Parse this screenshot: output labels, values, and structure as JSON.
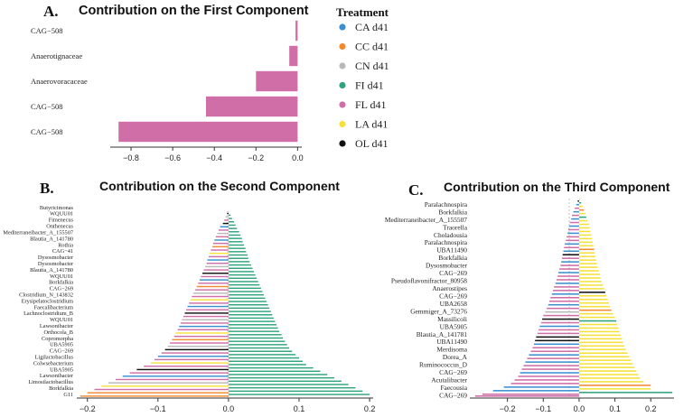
{
  "colors": {
    "CA d41": "#3b8fd0",
    "CC d41": "#f28a30",
    "CN d41": "#b9b9b9",
    "FI d41": "#2fa37b",
    "FL d41": "#cf6ea7",
    "LA d41": "#f5e13a",
    "OL d41": "#111111"
  },
  "legend": {
    "title": "Treatment",
    "items": [
      "CA d41",
      "CC d41",
      "CN d41",
      "FI d41",
      "FL d41",
      "LA d41",
      "OL d41"
    ]
  },
  "chart_data": [
    {
      "panel": "A.",
      "type": "bar",
      "orientation": "horizontal",
      "title": "Contribution on the First Component",
      "xlim": [
        -0.9,
        0.02
      ],
      "xticks": [
        -0.8,
        -0.6,
        -0.4,
        -0.2,
        0.0
      ],
      "xtick_labels": [
        "−0.8",
        "−0.6",
        "−0.4",
        "−0.2",
        "0.0"
      ],
      "categories": [
        "CAG−508",
        "Anaerotignaceae",
        "Anaerovoracaceae",
        "CAG−508",
        "CAG−508"
      ],
      "values": [
        -0.01,
        -0.04,
        -0.2,
        -0.44,
        -0.86
      ],
      "groups": [
        "FL d41",
        "FL d41",
        "FL d41",
        "FL d41",
        "FL d41"
      ]
    },
    {
      "panel": "B.",
      "type": "bar",
      "orientation": "horizontal",
      "title": "Contribution on the Second Component",
      "xlim": [
        -0.215,
        0.205
      ],
      "xticks": [
        -0.2,
        -0.1,
        0.0,
        0.1,
        0.2
      ],
      "xtick_labels": [
        "−0.2",
        "−0.1",
        "0.0",
        "0.1",
        "0.2"
      ],
      "bars_top_to_bottom": [
        {
          "v": 0.001,
          "g": "LA d41"
        },
        {
          "v": -0.002,
          "g": "OL d41"
        },
        {
          "v": 0.003,
          "g": "FI d41"
        },
        {
          "v": -0.004,
          "g": "CN d41"
        },
        {
          "v": 0.005,
          "g": "FI d41"
        },
        {
          "v": -0.006,
          "g": "FL d41"
        },
        {
          "v": 0.008,
          "g": "FI d41"
        },
        {
          "v": -0.008,
          "g": "OL d41"
        },
        {
          "v": 0.01,
          "g": "FI d41"
        },
        {
          "v": -0.012,
          "g": "CA d41"
        },
        {
          "v": 0.012,
          "g": "FI d41"
        },
        {
          "v": -0.014,
          "g": "FL d41"
        },
        {
          "v": 0.015,
          "g": "FI d41"
        },
        {
          "v": -0.016,
          "g": "CN d41"
        },
        {
          "v": 0.017,
          "g": "FI d41"
        },
        {
          "v": -0.018,
          "g": "FL d41"
        },
        {
          "v": 0.019,
          "g": "FI d41"
        },
        {
          "v": -0.02,
          "g": "CA d41"
        },
        {
          "v": 0.02,
          "g": "FI d41"
        },
        {
          "v": -0.022,
          "g": "FL d41"
        },
        {
          "v": 0.022,
          "g": "FI d41"
        },
        {
          "v": -0.023,
          "g": "CC d41"
        },
        {
          "v": 0.024,
          "g": "FI d41"
        },
        {
          "v": -0.025,
          "g": "FL d41"
        },
        {
          "v": 0.025,
          "g": "FI d41"
        },
        {
          "v": -0.027,
          "g": "LA d41"
        },
        {
          "v": 0.027,
          "g": "FI d41"
        },
        {
          "v": -0.028,
          "g": "FL d41"
        },
        {
          "v": 0.028,
          "g": "FI d41"
        },
        {
          "v": -0.03,
          "g": "CA d41"
        },
        {
          "v": 0.03,
          "g": "FI d41"
        },
        {
          "v": -0.031,
          "g": "FL d41"
        },
        {
          "v": 0.032,
          "g": "FI d41"
        },
        {
          "v": -0.033,
          "g": "CN d41"
        },
        {
          "v": 0.034,
          "g": "FI d41"
        },
        {
          "v": -0.035,
          "g": "FL d41"
        },
        {
          "v": 0.036,
          "g": "FI d41"
        },
        {
          "v": -0.037,
          "g": "OL d41"
        },
        {
          "v": 0.038,
          "g": "FI d41"
        },
        {
          "v": -0.039,
          "g": "FL d41"
        },
        {
          "v": 0.04,
          "g": "FI d41"
        },
        {
          "v": -0.041,
          "g": "CA d41"
        },
        {
          "v": 0.042,
          "g": "FI d41"
        },
        {
          "v": -0.043,
          "g": "FL d41"
        },
        {
          "v": 0.044,
          "g": "FI d41"
        },
        {
          "v": -0.045,
          "g": "CC d41"
        },
        {
          "v": 0.046,
          "g": "FI d41"
        },
        {
          "v": -0.047,
          "g": "FL d41"
        },
        {
          "v": 0.048,
          "g": "FI d41"
        },
        {
          "v": -0.05,
          "g": "CN d41"
        },
        {
          "v": 0.05,
          "g": "FI d41"
        },
        {
          "v": -0.052,
          "g": "FL d41"
        },
        {
          "v": 0.052,
          "g": "FI d41"
        },
        {
          "v": -0.054,
          "g": "LA d41"
        },
        {
          "v": 0.054,
          "g": "FI d41"
        },
        {
          "v": -0.056,
          "g": "FL d41"
        },
        {
          "v": 0.056,
          "g": "FI d41"
        },
        {
          "v": -0.058,
          "g": "CA d41"
        },
        {
          "v": 0.058,
          "g": "FI d41"
        },
        {
          "v": -0.06,
          "g": "FL d41"
        },
        {
          "v": 0.06,
          "g": "FI d41"
        },
        {
          "v": -0.062,
          "g": "OL d41"
        },
        {
          "v": 0.062,
          "g": "FI d41"
        },
        {
          "v": -0.064,
          "g": "FL d41"
        },
        {
          "v": 0.064,
          "g": "FI d41"
        },
        {
          "v": -0.066,
          "g": "CN d41"
        },
        {
          "v": 0.066,
          "g": "FI d41"
        },
        {
          "v": -0.068,
          "g": "FL d41"
        },
        {
          "v": 0.068,
          "g": "FI d41"
        },
        {
          "v": -0.07,
          "g": "CA d41"
        },
        {
          "v": 0.07,
          "g": "FI d41"
        },
        {
          "v": -0.072,
          "g": "FL d41"
        },
        {
          "v": 0.072,
          "g": "FI d41"
        },
        {
          "v": -0.075,
          "g": "LA d41"
        },
        {
          "v": 0.075,
          "g": "FI d41"
        },
        {
          "v": -0.077,
          "g": "FL d41"
        },
        {
          "v": 0.077,
          "g": "FI d41"
        },
        {
          "v": -0.08,
          "g": "CC d41"
        },
        {
          "v": 0.08,
          "g": "FI d41"
        },
        {
          "v": -0.083,
          "g": "FL d41"
        },
        {
          "v": 0.083,
          "g": "FI d41"
        },
        {
          "v": -0.086,
          "g": "CN d41"
        },
        {
          "v": 0.086,
          "g": "FI d41"
        },
        {
          "v": -0.09,
          "g": "OL d41"
        },
        {
          "v": 0.09,
          "g": "FI d41"
        },
        {
          "v": -0.095,
          "g": "FL d41"
        },
        {
          "v": 0.095,
          "g": "FI d41"
        },
        {
          "v": -0.1,
          "g": "CA d41"
        },
        {
          "v": 0.1,
          "g": "FI d41"
        },
        {
          "v": -0.105,
          "g": "FL d41"
        },
        {
          "v": 0.105,
          "g": "FI d41"
        },
        {
          "v": -0.11,
          "g": "LA d41"
        },
        {
          "v": 0.11,
          "g": "FI d41"
        },
        {
          "v": -0.12,
          "g": "FL d41"
        },
        {
          "v": 0.12,
          "g": "FI d41"
        },
        {
          "v": -0.13,
          "g": "OL d41"
        },
        {
          "v": 0.13,
          "g": "FI d41"
        },
        {
          "v": -0.14,
          "g": "FL d41"
        },
        {
          "v": 0.14,
          "g": "FI d41"
        },
        {
          "v": -0.15,
          "g": "CA d41"
        },
        {
          "v": 0.15,
          "g": "FI d41"
        },
        {
          "v": -0.16,
          "g": "FL d41"
        },
        {
          "v": 0.16,
          "g": "FI d41"
        },
        {
          "v": -0.17,
          "g": "CN d41"
        },
        {
          "v": 0.17,
          "g": "FI d41"
        },
        {
          "v": -0.18,
          "g": "LA d41"
        },
        {
          "v": 0.18,
          "g": "FI d41"
        },
        {
          "v": -0.19,
          "g": "FL d41"
        },
        {
          "v": 0.19,
          "g": "FI d41"
        },
        {
          "v": -0.2,
          "g": "CC d41"
        },
        {
          "v": 0.2,
          "g": "FI d41"
        },
        {
          "v": -0.21,
          "g": "CC d41"
        }
      ],
      "labels": [
        "Butyricimonas",
        "WQUU01",
        "Fimenecus",
        "Onthenecus",
        "Mediterraneibacter_A_155507",
        "Blautia_A_141780",
        "Rothia",
        "CAG−41",
        "Dysosmobacter",
        "Dysosmobacter",
        "Blautia_A_141780",
        "WQUU01",
        "Borkfalkia",
        "CAG−269",
        "Clostridium_N_143832",
        "Erysipelatoclostridium",
        "Faecalibacterium",
        "Lachnoclostridium_B",
        "WQUU01",
        "Lawsonibacter",
        "Orthocola_B",
        "Copromorpha",
        "UBA5905",
        "CAG−269",
        "Ligilactobacillus",
        "Colwsebacterium",
        "UBA5905",
        "Lawsonibacter",
        "Limosilactobacillus",
        "Borkfalkia",
        "G11"
      ]
    },
    {
      "panel": "C.",
      "type": "bar",
      "orientation": "horizontal",
      "title": "Contribution on the Third Component",
      "xlim": [
        -0.305,
        0.265
      ],
      "xticks": [
        -0.2,
        -0.1,
        0.0,
        0.1,
        0.2
      ],
      "xtick_labels": [
        "−0.2",
        "−0.1",
        "0.0",
        "0.1",
        "0.2"
      ],
      "bars_top_to_bottom": [
        {
          "v": 0.003,
          "g": "LA d41"
        },
        {
          "v": -0.004,
          "g": "OL d41"
        },
        {
          "v": 0.006,
          "g": "FI d41"
        },
        {
          "v": -0.008,
          "g": "CA d41"
        },
        {
          "v": 0.01,
          "g": "LA d41"
        },
        {
          "v": -0.012,
          "g": "FL d41"
        },
        {
          "v": 0.014,
          "g": "CC d41"
        },
        {
          "v": -0.016,
          "g": "CA d41"
        },
        {
          "v": 0.018,
          "g": "LA d41"
        },
        {
          "v": -0.02,
          "g": "FL d41"
        },
        {
          "v": 0.02,
          "g": "FI d41"
        },
        {
          "v": -0.022,
          "g": "CA d41"
        },
        {
          "v": 0.024,
          "g": "LA d41"
        },
        {
          "v": -0.026,
          "g": "FL d41"
        },
        {
          "v": 0.028,
          "g": "LA d41"
        },
        {
          "v": -0.028,
          "g": "CA d41"
        },
        {
          "v": 0.03,
          "g": "LA d41"
        },
        {
          "v": -0.03,
          "g": "FL d41"
        },
        {
          "v": 0.032,
          "g": "LA d41"
        },
        {
          "v": -0.032,
          "g": "CA d41"
        },
        {
          "v": 0.034,
          "g": "LA d41"
        },
        {
          "v": -0.035,
          "g": "FL d41"
        },
        {
          "v": 0.036,
          "g": "LA d41"
        },
        {
          "v": -0.037,
          "g": "FL d41"
        },
        {
          "v": 0.038,
          "g": "LA d41"
        },
        {
          "v": -0.04,
          "g": "CA d41"
        },
        {
          "v": 0.04,
          "g": "LA d41"
        },
        {
          "v": -0.042,
          "g": "FL d41"
        },
        {
          "v": 0.042,
          "g": "CC d41"
        },
        {
          "v": -0.044,
          "g": "CA d41"
        },
        {
          "v": 0.044,
          "g": "LA d41"
        },
        {
          "v": -0.046,
          "g": "OL d41"
        },
        {
          "v": 0.046,
          "g": "LA d41"
        },
        {
          "v": -0.048,
          "g": "FL d41"
        },
        {
          "v": 0.048,
          "g": "LA d41"
        },
        {
          "v": -0.05,
          "g": "CA d41"
        },
        {
          "v": 0.05,
          "g": "LA d41"
        },
        {
          "v": -0.052,
          "g": "FL d41"
        },
        {
          "v": 0.052,
          "g": "LA d41"
        },
        {
          "v": -0.055,
          "g": "FL d41"
        },
        {
          "v": 0.055,
          "g": "LA d41"
        },
        {
          "v": -0.058,
          "g": "CA d41"
        },
        {
          "v": 0.058,
          "g": "LA d41"
        },
        {
          "v": -0.06,
          "g": "FL d41"
        },
        {
          "v": 0.06,
          "g": "LA d41"
        },
        {
          "v": -0.063,
          "g": "FL d41"
        },
        {
          "v": 0.063,
          "g": "LA d41"
        },
        {
          "v": -0.066,
          "g": "CA d41"
        },
        {
          "v": 0.066,
          "g": "LA d41"
        },
        {
          "v": -0.07,
          "g": "FL d41"
        },
        {
          "v": 0.07,
          "g": "LA d41"
        },
        {
          "v": -0.073,
          "g": "FL d41"
        },
        {
          "v": 0.073,
          "g": "OL d41"
        },
        {
          "v": -0.076,
          "g": "CA d41"
        },
        {
          "v": 0.076,
          "g": "LA d41"
        },
        {
          "v": -0.08,
          "g": "FL d41"
        },
        {
          "v": 0.08,
          "g": "LA d41"
        },
        {
          "v": -0.083,
          "g": "FL d41"
        },
        {
          "v": 0.083,
          "g": "LA d41"
        },
        {
          "v": -0.086,
          "g": "CA d41"
        },
        {
          "v": 0.086,
          "g": "LA d41"
        },
        {
          "v": -0.09,
          "g": "FL d41"
        },
        {
          "v": 0.09,
          "g": "CC d41"
        },
        {
          "v": -0.095,
          "g": "CN d41"
        },
        {
          "v": 0.095,
          "g": "LA d41"
        },
        {
          "v": -0.1,
          "g": "FL d41"
        },
        {
          "v": 0.1,
          "g": "LA d41"
        },
        {
          "v": -0.103,
          "g": "OL d41"
        },
        {
          "v": 0.104,
          "g": "FI d41"
        },
        {
          "v": -0.106,
          "g": "FL d41"
        },
        {
          "v": 0.106,
          "g": "LA d41"
        },
        {
          "v": -0.11,
          "g": "CA d41"
        },
        {
          "v": 0.11,
          "g": "LA d41"
        },
        {
          "v": -0.113,
          "g": "FL d41"
        },
        {
          "v": 0.113,
          "g": "LA d41"
        },
        {
          "v": -0.116,
          "g": "FL d41"
        },
        {
          "v": 0.116,
          "g": "LA d41"
        },
        {
          "v": -0.12,
          "g": "OL d41"
        },
        {
          "v": 0.12,
          "g": "LA d41"
        },
        {
          "v": -0.123,
          "g": "OL d41"
        },
        {
          "v": 0.123,
          "g": "LA d41"
        },
        {
          "v": -0.126,
          "g": "CA d41"
        },
        {
          "v": 0.126,
          "g": "LA d41"
        },
        {
          "v": -0.13,
          "g": "FL d41"
        },
        {
          "v": 0.13,
          "g": "LA d41"
        },
        {
          "v": -0.135,
          "g": "FL d41"
        },
        {
          "v": 0.135,
          "g": "LA d41"
        },
        {
          "v": -0.14,
          "g": "CA d41"
        },
        {
          "v": 0.14,
          "g": "LA d41"
        },
        {
          "v": -0.145,
          "g": "FL d41"
        },
        {
          "v": 0.145,
          "g": "LA d41"
        },
        {
          "v": -0.15,
          "g": "CA d41"
        },
        {
          "v": 0.15,
          "g": "LA d41"
        },
        {
          "v": -0.155,
          "g": "FL d41"
        },
        {
          "v": 0.155,
          "g": "LA d41"
        },
        {
          "v": -0.16,
          "g": "FL d41"
        },
        {
          "v": 0.16,
          "g": "LA d41"
        },
        {
          "v": -0.165,
          "g": "CA d41"
        },
        {
          "v": 0.165,
          "g": "LA d41"
        },
        {
          "v": -0.17,
          "g": "FL d41"
        },
        {
          "v": 0.17,
          "g": "LA d41"
        },
        {
          "v": -0.18,
          "g": "FL d41"
        },
        {
          "v": 0.18,
          "g": "LA d41"
        },
        {
          "v": -0.19,
          "g": "FL d41"
        },
        {
          "v": 0.2,
          "g": "CC d41"
        },
        {
          "v": -0.21,
          "g": "CA d41"
        },
        {
          "v": 0.2,
          "g": "LA d41"
        },
        {
          "v": -0.24,
          "g": "CA d41"
        },
        {
          "v": 0.26,
          "g": "FI d41"
        },
        {
          "v": -0.27,
          "g": "FL d41"
        },
        {
          "v": -0.29,
          "g": "FL d41"
        }
      ],
      "labels": [
        "Paralachnospira",
        "Borkfalkia",
        "Mediterraneibacter_A_155507",
        "Traorella",
        "Choladousia",
        "Paralachnospira",
        "UBA11490",
        "Borkfalkia",
        "Dysosmobacter",
        "CAG−269",
        "Pseudoflavonifractor_80958",
        "Anaerostipes",
        "CAG−269",
        "UBA2658",
        "Gemmiger_A_73276",
        "Massilicoli",
        "UBA5905",
        "Blautia_A_141781",
        "UBA11490",
        "Merdisoma",
        "Dorea_A",
        "Ruminococcus_D",
        "CAG−269",
        "Acutalibacter",
        "Faecousia",
        "CAG−269"
      ]
    }
  ]
}
